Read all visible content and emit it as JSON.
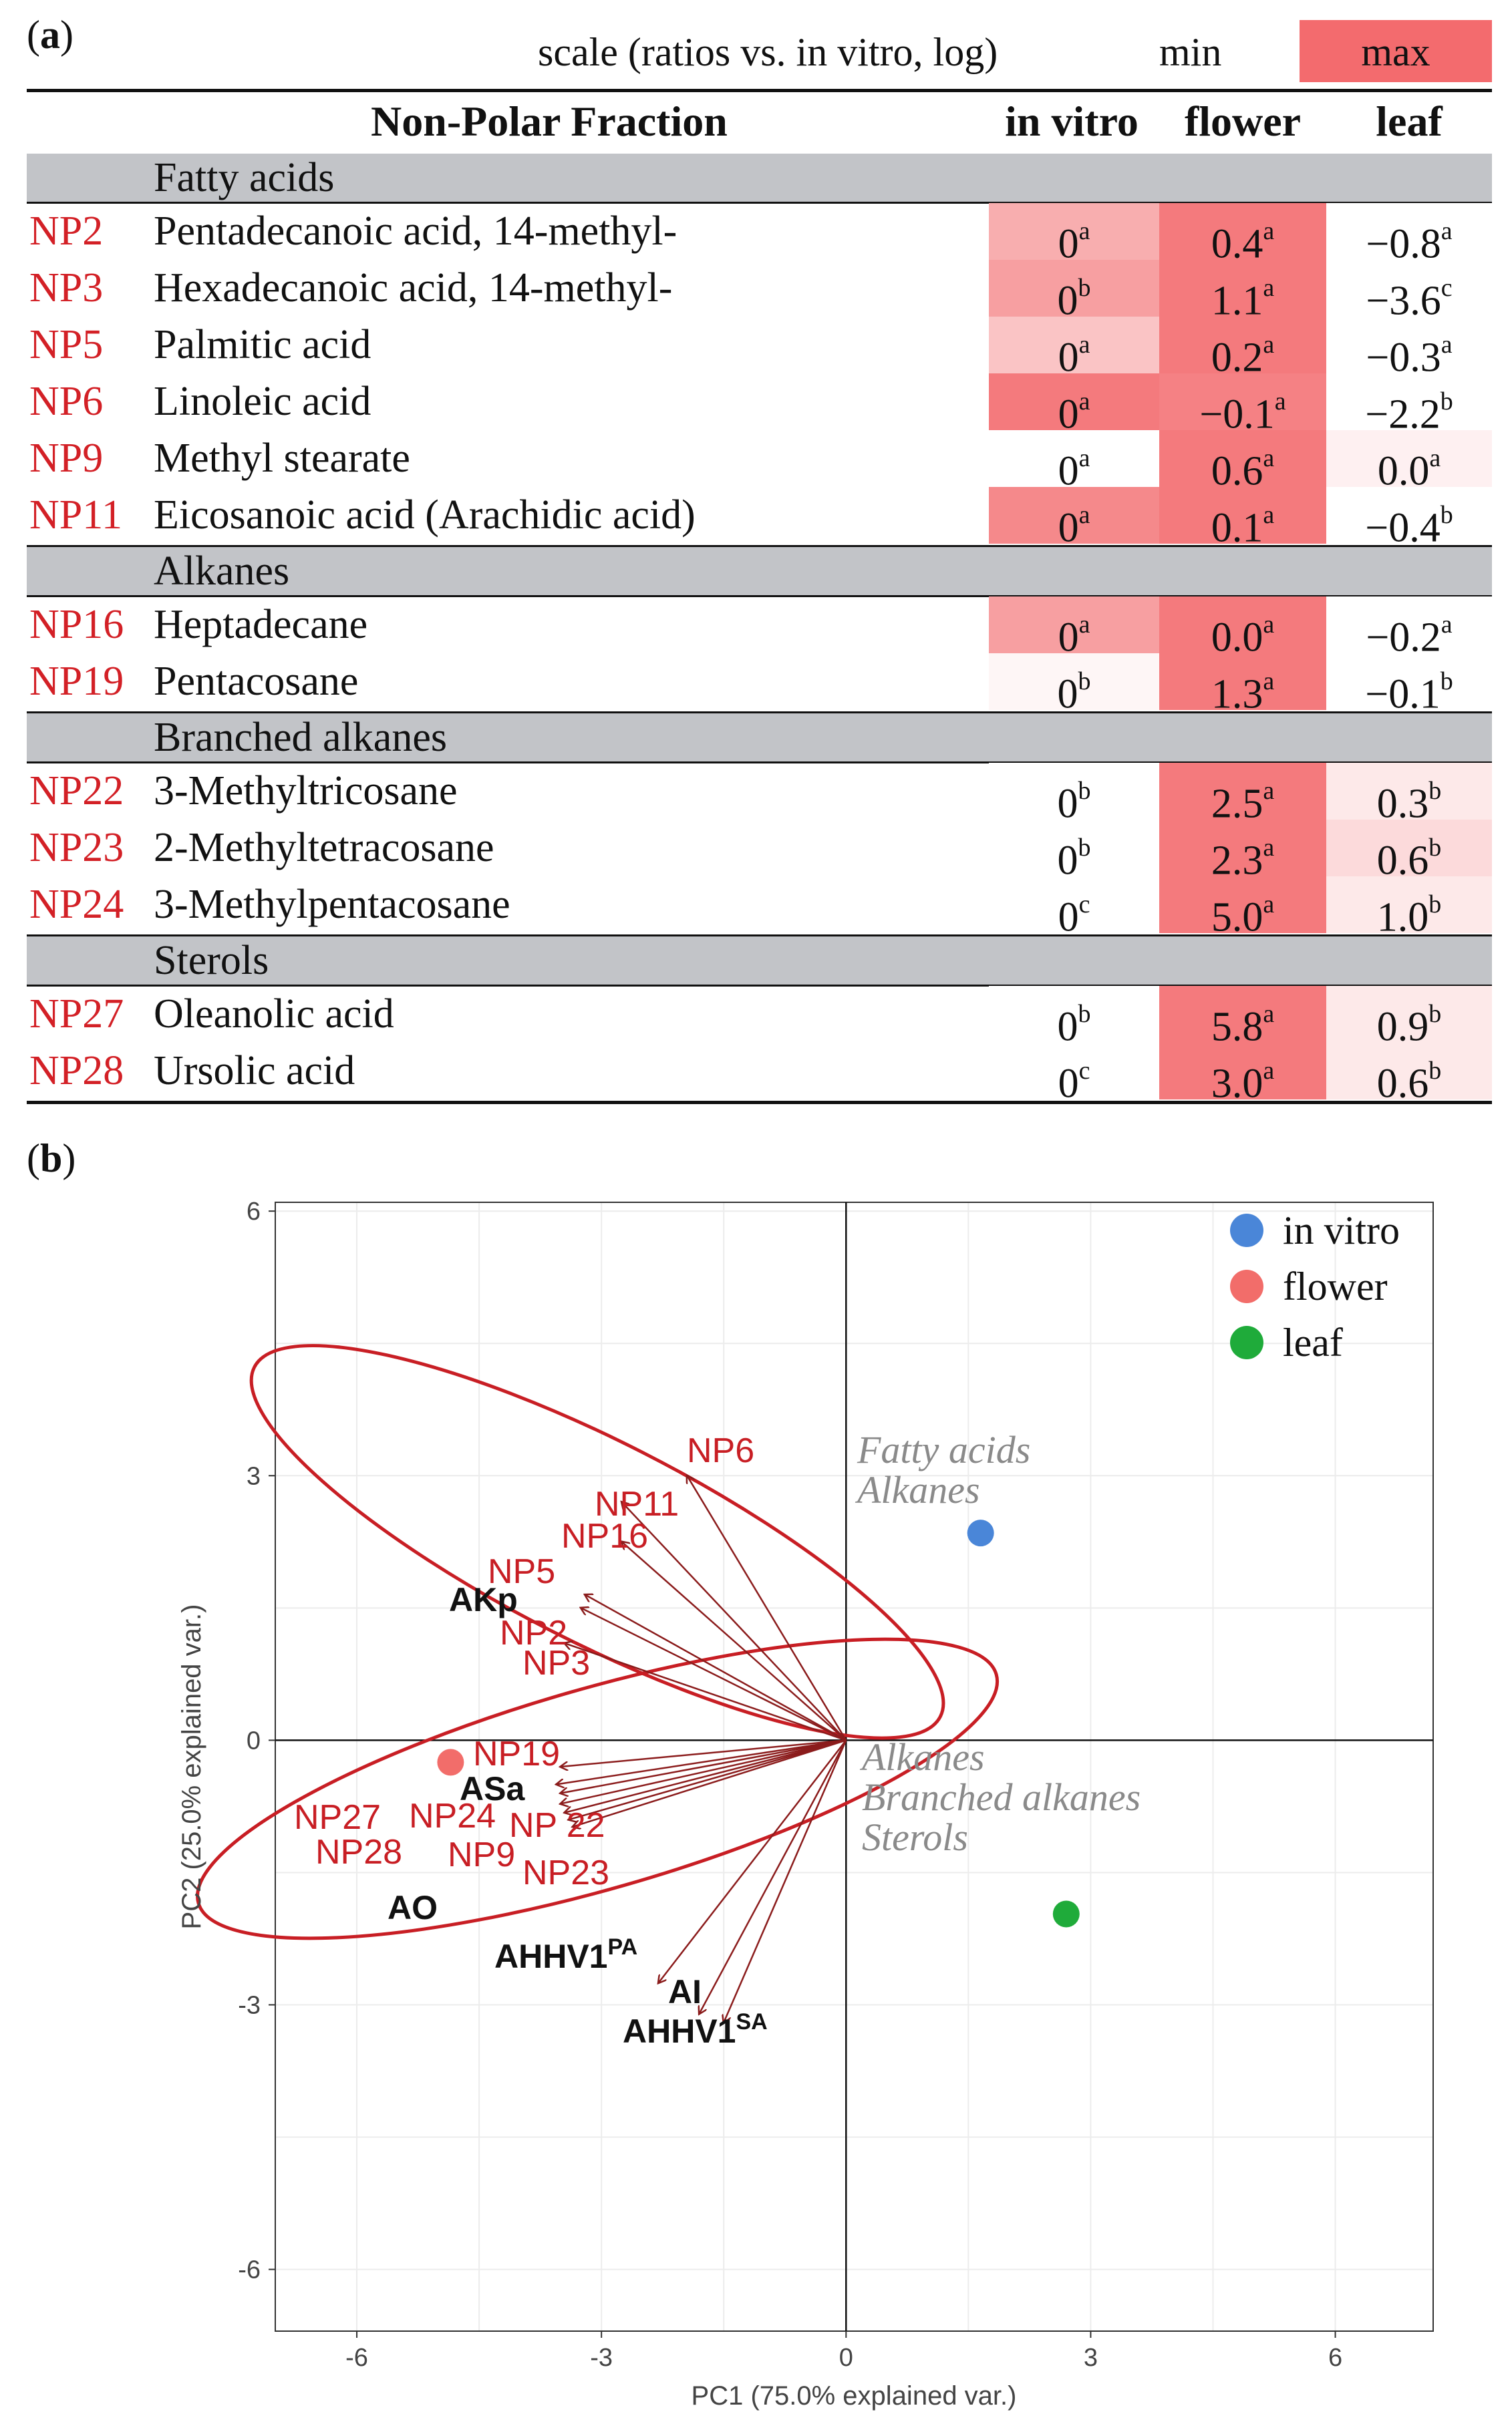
{
  "panel_a": {
    "label": "a",
    "scale_caption": "scale (ratios vs. in vitro, log)",
    "scale_min": "min",
    "scale_max": "max",
    "header": {
      "fraction": "Non-Polar Fraction",
      "col1": "in vitro",
      "col2": "flower",
      "col3": "leaf"
    },
    "colors": {
      "max": "#f36b6e",
      "min": "#ffffff",
      "group_band": "#c2c4c8",
      "code": "#d32026"
    }
  },
  "panel_b": {
    "label": "b"
  },
  "chart_data": [
    {
      "type": "table",
      "title": "Non-Polar Fraction",
      "columns": [
        "in vitro",
        "flower",
        "leaf"
      ],
      "groups": [
        {
          "name": "Fatty acids",
          "rows": [
            {
              "code": "NP2",
              "name": "Pentadecanoic acid, 14-methyl-",
              "values": [
                "0",
                "0.4",
                "−0.8"
              ],
              "letters": [
                "a",
                "a",
                "a"
              ],
              "shade": [
                0.55,
                0.9,
                0.0
              ]
            },
            {
              "code": "NP3",
              "name": "Hexadecanoic acid, 14-methyl-",
              "values": [
                "0",
                "1.1",
                "−3.6"
              ],
              "letters": [
                "b",
                "a",
                "c"
              ],
              "shade": [
                0.65,
                0.9,
                0.0
              ]
            },
            {
              "code": "NP5",
              "name": "Palmitic acid",
              "values": [
                "0",
                "0.2",
                "−0.3"
              ],
              "letters": [
                "a",
                "a",
                "a"
              ],
              "shade": [
                0.4,
                0.9,
                0.0
              ]
            },
            {
              "code": "NP6",
              "name": "Linoleic acid",
              "values": [
                "0",
                "−0.1",
                "−2.2"
              ],
              "letters": [
                "a",
                "a",
                "b"
              ],
              "shade": [
                0.9,
                0.85,
                0.0
              ]
            },
            {
              "code": "NP9",
              "name": "Methyl stearate",
              "values": [
                "0",
                "0.6",
                "0.0"
              ],
              "letters": [
                "a",
                "a",
                "a"
              ],
              "shade": [
                0.0,
                0.9,
                0.1
              ]
            },
            {
              "code": "NP11",
              "name": "Eicosanoic acid (Arachidic acid)",
              "values": [
                "0",
                "0.1",
                "−0.4"
              ],
              "letters": [
                "a",
                "a",
                "b"
              ],
              "shade": [
                0.8,
                0.9,
                0.0
              ]
            }
          ]
        },
        {
          "name": "Alkanes",
          "rows": [
            {
              "code": "NP16",
              "name": "Heptadecane",
              "values": [
                "0",
                "0.0",
                "−0.2"
              ],
              "letters": [
                "a",
                "a",
                "a"
              ],
              "shade": [
                0.65,
                0.9,
                0.0
              ]
            },
            {
              "code": "NP19",
              "name": "Pentacosane",
              "values": [
                "0",
                "1.3",
                "−0.1"
              ],
              "letters": [
                "b",
                "a",
                "b"
              ],
              "shade": [
                0.06,
                0.9,
                0.0
              ]
            }
          ]
        },
        {
          "name": "Branched alkanes",
          "rows": [
            {
              "code": "NP22",
              "name": "3-Methyltricosane",
              "values": [
                "0",
                "2.5",
                "0.3"
              ],
              "letters": [
                "b",
                "a",
                "b"
              ],
              "shade": [
                0.0,
                0.9,
                0.15
              ]
            },
            {
              "code": "NP23",
              "name": "2-Methyltetracosane",
              "values": [
                "0",
                "2.3",
                "0.6"
              ],
              "letters": [
                "b",
                "a",
                "b"
              ],
              "shade": [
                0.0,
                0.9,
                0.25
              ]
            },
            {
              "code": "NP24",
              "name": "3-Methylpentacosane",
              "values": [
                "0",
                "5.0",
                "1.0"
              ],
              "letters": [
                "c",
                "a",
                "b"
              ],
              "shade": [
                0.0,
                0.9,
                0.15
              ]
            }
          ]
        },
        {
          "name": "Sterols",
          "rows": [
            {
              "code": "NP27",
              "name": "Oleanolic acid",
              "values": [
                "0",
                "5.8",
                "0.9"
              ],
              "letters": [
                "b",
                "a",
                "b"
              ],
              "shade": [
                0.0,
                0.9,
                0.15
              ]
            },
            {
              "code": "NP28",
              "name": "Ursolic acid",
              "values": [
                "0",
                "3.0",
                "0.6"
              ],
              "letters": [
                "c",
                "a",
                "b"
              ],
              "shade": [
                0.0,
                0.9,
                0.15
              ]
            }
          ]
        }
      ]
    },
    {
      "type": "scatter",
      "xlabel": "PC1 (75.0% explained var.)",
      "ylabel": "PC2 (25.0% explained var.)",
      "xlim": [
        -7,
        7.2
      ],
      "ylim": [
        -6.7,
        6.1
      ],
      "xticks": [
        -6,
        -3,
        0,
        3,
        6
      ],
      "yticks": [
        -6,
        -3,
        0,
        3,
        6
      ],
      "tick_labels": [
        "-6",
        "-3",
        "0",
        "3",
        "6"
      ],
      "grid": true,
      "legend_position": "top-right",
      "series": [
        {
          "name": "in vitro",
          "color": "#4a86d8",
          "x": [
            1.65
          ],
          "y": [
            2.35
          ]
        },
        {
          "name": "flower",
          "color": "#f26d6a",
          "x": [
            -4.85
          ],
          "y": [
            -0.25
          ]
        },
        {
          "name": "leaf",
          "color": "#1fab3a",
          "x": [
            2.7
          ],
          "y": [
            -1.97
          ]
        }
      ],
      "loadings": [
        {
          "label": "NP6",
          "x": -1.95,
          "y": 3.0
        },
        {
          "label": "NP11",
          "x": -2.75,
          "y": 2.7
        },
        {
          "label": "NP16",
          "x": -2.75,
          "y": 2.25
        },
        {
          "label": "NP5",
          "x": -3.2,
          "y": 1.65
        },
        {
          "label": "NP2",
          "x": -3.25,
          "y": 1.5
        },
        {
          "label": "NP3",
          "x": -3.45,
          "y": 1.1
        },
        {
          "label": "NP19",
          "x": -3.5,
          "y": -0.3
        },
        {
          "label": "NP24",
          "x": -3.55,
          "y": -0.5
        },
        {
          "label": "NP22",
          "x": -3.5,
          "y": -0.6
        },
        {
          "label": "NP27",
          "x": -3.5,
          "y": -0.72
        },
        {
          "label": "NP28",
          "x": -3.45,
          "y": -0.82
        },
        {
          "label": "NP9",
          "x": -3.4,
          "y": -0.9
        },
        {
          "label": "NP23",
          "x": -3.35,
          "y": -0.98
        },
        {
          "label": "AHHV1PA",
          "x": -2.3,
          "y": -2.75
        },
        {
          "label": "AI",
          "x": -1.8,
          "y": -3.1
        },
        {
          "label": "AHHV1SA",
          "x": -1.5,
          "y": -3.2
        }
      ],
      "variable_labels": [
        {
          "text": "NP6",
          "color": "red"
        },
        {
          "text": "NP11",
          "color": "red"
        },
        {
          "text": "NP16",
          "color": "red"
        },
        {
          "text": "NP5",
          "color": "red"
        },
        {
          "text": "AKp",
          "color": "black"
        },
        {
          "text": "NP2",
          "color": "red"
        },
        {
          "text": "NP3",
          "color": "red"
        },
        {
          "text": "NP19",
          "color": "red"
        },
        {
          "text": "ASa",
          "color": "black"
        },
        {
          "text": "NP27",
          "color": "red"
        },
        {
          "text": "NP24",
          "color": "red"
        },
        {
          "text": "NP 22",
          "color": "red"
        },
        {
          "text": "NP28",
          "color": "red"
        },
        {
          "text": "NP9",
          "color": "red"
        },
        {
          "text": "NP23",
          "color": "red"
        },
        {
          "text": "AO",
          "color": "black"
        },
        {
          "text": "AHHV1",
          "sup": "PA",
          "color": "black"
        },
        {
          "text": "AI",
          "color": "black"
        },
        {
          "text": "AHHV1",
          "sup": "SA",
          "color": "black"
        }
      ],
      "annotations": [
        {
          "lines": [
            "Fatty acids",
            "Alkanes"
          ]
        },
        {
          "lines": [
            "Alkanes",
            "Branched alkanes",
            "Sterols"
          ]
        }
      ]
    }
  ]
}
